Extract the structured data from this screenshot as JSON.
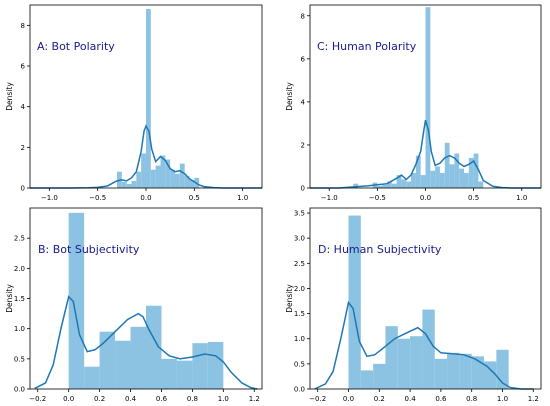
{
  "chart_data": [
    {
      "type": "bar",
      "title": "A: Bot Polarity",
      "ylabel": "Density",
      "xlim": [
        -1.2,
        1.2
      ],
      "ylim": [
        0,
        9
      ],
      "xticks": [
        -1.0,
        -0.5,
        0.0,
        0.5,
        1.0
      ],
      "xtick_labels": [
        "−1.0",
        "−0.5",
        "0.0",
        "0.5",
        "1.0"
      ],
      "yticks": [
        0,
        2,
        4,
        6,
        8
      ],
      "ytick_labels": [
        "0",
        "2",
        "4",
        "6",
        "8"
      ],
      "bins": [
        {
          "x0": -0.3,
          "x1": -0.25,
          "h": 0.8
        },
        {
          "x0": -0.25,
          "x1": -0.2,
          "h": 0.3
        },
        {
          "x0": -0.2,
          "x1": -0.15,
          "h": 0.2
        },
        {
          "x0": -0.15,
          "x1": -0.1,
          "h": 0.35
        },
        {
          "x0": -0.1,
          "x1": -0.05,
          "h": 0.8
        },
        {
          "x0": -0.05,
          "x1": 0.0,
          "h": 1.7
        },
        {
          "x0": 0.0,
          "x1": 0.05,
          "h": 8.8
        },
        {
          "x0": 0.05,
          "x1": 0.1,
          "h": 0.9
        },
        {
          "x0": 0.1,
          "x1": 0.15,
          "h": 1.1
        },
        {
          "x0": 0.15,
          "x1": 0.2,
          "h": 1.6
        },
        {
          "x0": 0.2,
          "x1": 0.25,
          "h": 1.4
        },
        {
          "x0": 0.25,
          "x1": 0.3,
          "h": 0.9
        },
        {
          "x0": 0.3,
          "x1": 0.35,
          "h": 0.7
        },
        {
          "x0": 0.35,
          "x1": 0.4,
          "h": 1.2
        },
        {
          "x0": 0.4,
          "x1": 0.45,
          "h": 0.6
        },
        {
          "x0": 0.45,
          "x1": 0.5,
          "h": 0.4
        },
        {
          "x0": 0.5,
          "x1": 0.55,
          "h": 0.5
        }
      ],
      "kde": {
        "x": [
          -1.2,
          -0.8,
          -0.6,
          -0.5,
          -0.4,
          -0.3,
          -0.25,
          -0.2,
          -0.15,
          -0.1,
          -0.05,
          -0.02,
          0.0,
          0.03,
          0.06,
          0.1,
          0.15,
          0.2,
          0.25,
          0.3,
          0.35,
          0.4,
          0.45,
          0.5,
          0.55,
          0.6,
          0.7,
          0.8,
          0.9,
          1.2
        ],
        "y": [
          0,
          0,
          0.01,
          0.03,
          0.1,
          0.35,
          0.4,
          0.35,
          0.5,
          0.8,
          1.8,
          2.8,
          3.05,
          2.8,
          1.9,
          1.3,
          1.55,
          1.35,
          0.95,
          0.8,
          0.85,
          0.7,
          0.45,
          0.3,
          0.15,
          0.07,
          0.02,
          0,
          0,
          0
        ]
      }
    },
    {
      "type": "bar",
      "title": "C: Human Polarity",
      "ylabel": "Density",
      "xlim": [
        -1.2,
        1.2
      ],
      "ylim": [
        0,
        8.5
      ],
      "xticks": [
        -1.0,
        -0.5,
        0.0,
        0.5,
        1.0
      ],
      "xtick_labels": [
        "−1.0",
        "−0.5",
        "0.0",
        "0.5",
        "1.0"
      ],
      "yticks": [
        0,
        2,
        4,
        6,
        8
      ],
      "ytick_labels": [
        "0",
        "2",
        "4",
        "6",
        "8"
      ],
      "bins": [
        {
          "x0": -0.75,
          "x1": -0.7,
          "h": 0.2
        },
        {
          "x0": -0.55,
          "x1": -0.5,
          "h": 0.25
        },
        {
          "x0": -0.5,
          "x1": -0.45,
          "h": 0.1
        },
        {
          "x0": -0.45,
          "x1": -0.4,
          "h": 0.15
        },
        {
          "x0": -0.4,
          "x1": -0.35,
          "h": 0.3
        },
        {
          "x0": -0.35,
          "x1": -0.3,
          "h": 0.2
        },
        {
          "x0": -0.3,
          "x1": -0.25,
          "h": 0.6
        },
        {
          "x0": -0.25,
          "x1": -0.2,
          "h": 0.4
        },
        {
          "x0": -0.2,
          "x1": -0.15,
          "h": 0.3
        },
        {
          "x0": -0.15,
          "x1": -0.1,
          "h": 0.7
        },
        {
          "x0": -0.1,
          "x1": -0.05,
          "h": 1.5
        },
        {
          "x0": -0.05,
          "x1": 0.0,
          "h": 0.6
        },
        {
          "x0": 0.0,
          "x1": 0.05,
          "h": 8.4
        },
        {
          "x0": 0.05,
          "x1": 0.1,
          "h": 0.8
        },
        {
          "x0": 0.1,
          "x1": 0.15,
          "h": 1.0
        },
        {
          "x0": 0.15,
          "x1": 0.2,
          "h": 0.7
        },
        {
          "x0": 0.2,
          "x1": 0.25,
          "h": 2.1
        },
        {
          "x0": 0.25,
          "x1": 0.3,
          "h": 1.1
        },
        {
          "x0": 0.3,
          "x1": 0.35,
          "h": 1.6
        },
        {
          "x0": 0.35,
          "x1": 0.4,
          "h": 0.9
        },
        {
          "x0": 0.4,
          "x1": 0.45,
          "h": 0.7
        },
        {
          "x0": 0.45,
          "x1": 0.5,
          "h": 1.4
        },
        {
          "x0": 0.5,
          "x1": 0.55,
          "h": 1.6
        },
        {
          "x0": 0.55,
          "x1": 0.6,
          "h": 0.3
        }
      ],
      "kde": {
        "x": [
          -1.2,
          -0.9,
          -0.75,
          -0.6,
          -0.5,
          -0.4,
          -0.3,
          -0.25,
          -0.2,
          -0.15,
          -0.1,
          -0.05,
          -0.02,
          0.0,
          0.03,
          0.06,
          0.1,
          0.15,
          0.2,
          0.25,
          0.3,
          0.35,
          0.4,
          0.45,
          0.5,
          0.55,
          0.6,
          0.7,
          0.8,
          0.9,
          1.2
        ],
        "y": [
          0,
          0,
          0.05,
          0.1,
          0.15,
          0.2,
          0.45,
          0.6,
          0.4,
          0.6,
          1.1,
          1.7,
          2.6,
          3.15,
          2.7,
          1.7,
          1.05,
          1.15,
          1.4,
          1.5,
          1.4,
          1.15,
          1.0,
          1.1,
          1.25,
          0.85,
          0.35,
          0.08,
          0.02,
          0,
          0
        ]
      }
    },
    {
      "type": "bar",
      "title": "B: Bot Subjectivity",
      "ylabel": "Density",
      "xlim": [
        -0.25,
        1.25
      ],
      "ylim": [
        0,
        3.0
      ],
      "xticks": [
        -0.2,
        0.0,
        0.2,
        0.4,
        0.6,
        0.8,
        1.0,
        1.2
      ],
      "xtick_labels": [
        "−0.2",
        "0.0",
        "0.2",
        "0.4",
        "0.6",
        "0.8",
        "1.0",
        "1.2"
      ],
      "yticks": [
        0,
        0.5,
        1.0,
        1.5,
        2.0,
        2.5
      ],
      "ytick_labels": [
        "0.0",
        "0.5",
        "1.0",
        "1.5",
        "2.0",
        "2.5"
      ],
      "bins": [
        {
          "x0": 0.0,
          "x1": 0.1,
          "h": 2.92
        },
        {
          "x0": 0.1,
          "x1": 0.2,
          "h": 0.37
        },
        {
          "x0": 0.2,
          "x1": 0.3,
          "h": 0.95
        },
        {
          "x0": 0.3,
          "x1": 0.4,
          "h": 0.8
        },
        {
          "x0": 0.4,
          "x1": 0.5,
          "h": 1.03
        },
        {
          "x0": 0.5,
          "x1": 0.6,
          "h": 1.38
        },
        {
          "x0": 0.6,
          "x1": 0.7,
          "h": 0.5
        },
        {
          "x0": 0.7,
          "x1": 0.8,
          "h": 0.47
        },
        {
          "x0": 0.8,
          "x1": 0.9,
          "h": 0.76
        },
        {
          "x0": 0.9,
          "x1": 1.0,
          "h": 0.78
        }
      ],
      "kde": {
        "x": [
          -0.22,
          -0.15,
          -0.1,
          -0.05,
          0.0,
          0.03,
          0.07,
          0.12,
          0.17,
          0.22,
          0.3,
          0.38,
          0.45,
          0.48,
          0.52,
          0.58,
          0.65,
          0.72,
          0.8,
          0.88,
          0.95,
          1.0,
          1.05,
          1.12,
          1.18,
          1.22
        ],
        "y": [
          0.01,
          0.1,
          0.4,
          1.0,
          1.53,
          1.45,
          0.9,
          0.62,
          0.65,
          0.75,
          0.95,
          1.15,
          1.25,
          1.2,
          0.98,
          0.7,
          0.55,
          0.5,
          0.53,
          0.58,
          0.55,
          0.45,
          0.28,
          0.1,
          0.02,
          0.0
        ]
      }
    },
    {
      "type": "bar",
      "title": "D: Human Subjectivity",
      "ylabel": "Density",
      "xlim": [
        -0.25,
        1.25
      ],
      "ylim": [
        0,
        3.6
      ],
      "xticks": [
        -0.2,
        0.0,
        0.2,
        0.4,
        0.6,
        0.8,
        1.0,
        1.2
      ],
      "xtick_labels": [
        "−0.2",
        "0.0",
        "0.2",
        "0.4",
        "0.6",
        "0.8",
        "1.0",
        "1.2"
      ],
      "yticks": [
        0,
        0.5,
        1.0,
        1.5,
        2.0,
        2.5,
        3.0,
        3.5
      ],
      "ytick_labels": [
        "0.0",
        "0.5",
        "1.0",
        "1.5",
        "2.0",
        "2.5",
        "3.0",
        "3.5"
      ],
      "bins": [
        {
          "x0": 0.0,
          "x1": 0.08,
          "h": 3.45
        },
        {
          "x0": 0.08,
          "x1": 0.16,
          "h": 0.37
        },
        {
          "x0": 0.16,
          "x1": 0.24,
          "h": 0.5
        },
        {
          "x0": 0.24,
          "x1": 0.32,
          "h": 1.25
        },
        {
          "x0": 0.32,
          "x1": 0.4,
          "h": 1.0
        },
        {
          "x0": 0.4,
          "x1": 0.48,
          "h": 1.05
        },
        {
          "x0": 0.48,
          "x1": 0.56,
          "h": 1.58
        },
        {
          "x0": 0.56,
          "x1": 0.64,
          "h": 0.6
        },
        {
          "x0": 0.64,
          "x1": 0.72,
          "h": 0.72
        },
        {
          "x0": 0.72,
          "x1": 0.8,
          "h": 0.7
        },
        {
          "x0": 0.8,
          "x1": 0.88,
          "h": 0.65
        },
        {
          "x0": 0.88,
          "x1": 0.96,
          "h": 0.55
        },
        {
          "x0": 0.96,
          "x1": 1.04,
          "h": 0.78
        }
      ],
      "kde": {
        "x": [
          -0.22,
          -0.15,
          -0.1,
          -0.05,
          0.0,
          0.03,
          0.07,
          0.12,
          0.17,
          0.22,
          0.3,
          0.38,
          0.45,
          0.5,
          0.55,
          0.6,
          0.68,
          0.75,
          0.82,
          0.9,
          0.95,
          1.0,
          1.05,
          1.12,
          1.2
        ],
        "y": [
          0.0,
          0.1,
          0.35,
          1.0,
          1.72,
          1.6,
          0.95,
          0.65,
          0.68,
          0.8,
          1.0,
          1.12,
          1.22,
          1.1,
          0.85,
          0.72,
          0.7,
          0.68,
          0.6,
          0.45,
          0.3,
          0.12,
          0.03,
          0.0,
          0.0
        ]
      }
    }
  ],
  "colors": {
    "bar_fill": "#8cc3e2",
    "kde_line": "#1f77b4",
    "title_text": "#1a1a8c",
    "axis": "#000000"
  }
}
